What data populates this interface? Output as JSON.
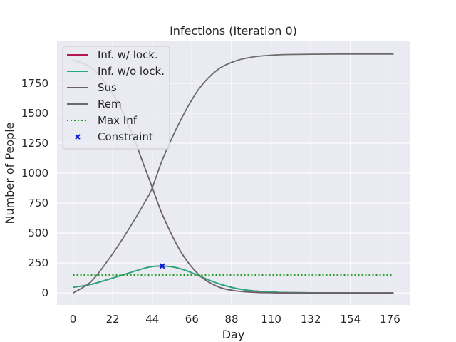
{
  "chart_data": {
    "type": "line",
    "title": "Infections (Iteration 0)",
    "xlabel": "Day",
    "ylabel": "Number of People",
    "xlim": [
      -8.9,
      186.9
    ],
    "ylim": [
      -100,
      2100
    ],
    "xticks": [
      0,
      22,
      44,
      66,
      88,
      110,
      132,
      154,
      176
    ],
    "yticks": [
      0,
      250,
      500,
      750,
      1000,
      1250,
      1500,
      1750
    ],
    "grid": true,
    "legend_position": "top-left",
    "series": [
      {
        "name": "Inf. w/ lock.",
        "style": "solid",
        "color": "#b5174e",
        "x": [
          0,
          10,
          20,
          30,
          40,
          45,
          50,
          55,
          60,
          65,
          70,
          80,
          90,
          100,
          110,
          120,
          140,
          160,
          178
        ],
        "y": [
          48,
          72,
          115,
          162,
          208,
          222,
          225,
          218,
          200,
          174,
          142,
          82,
          40,
          18,
          8,
          3,
          1,
          0,
          0
        ]
      },
      {
        "name": "Inf. w/o lock.",
        "style": "solid",
        "color": "#1fae7c",
        "x": [
          0,
          10,
          20,
          30,
          40,
          45,
          50,
          55,
          60,
          65,
          70,
          80,
          90,
          100,
          110,
          120,
          140,
          160,
          178
        ],
        "y": [
          48,
          72,
          115,
          162,
          208,
          222,
          225,
          218,
          200,
          174,
          142,
          82,
          40,
          18,
          8,
          3,
          1,
          0,
          0
        ]
      },
      {
        "name": "Sus",
        "style": "solid",
        "color": "#6e5f66",
        "x": [
          0,
          10,
          20,
          30,
          40,
          44,
          50,
          60,
          70,
          80,
          90,
          100,
          110,
          120,
          140,
          160,
          178
        ],
        "y": [
          1945,
          1880,
          1710,
          1430,
          1040,
          880,
          640,
          340,
          150,
          55,
          18,
          6,
          2,
          0,
          0,
          0,
          0
        ]
      },
      {
        "name": "Rem",
        "style": "solid",
        "color": "#6b6b6b",
        "x": [
          0,
          10,
          20,
          30,
          40,
          44,
          50,
          60,
          70,
          80,
          90,
          100,
          110,
          120,
          140,
          160,
          178
        ],
        "y": [
          0,
          95,
          285,
          510,
          760,
          880,
          1125,
          1450,
          1705,
          1860,
          1935,
          1970,
          1984,
          1990,
          1993,
          1994,
          1994
        ]
      },
      {
        "name": "Max Inf",
        "style": "dotted",
        "color": "#1a9e1a",
        "x": [
          0,
          178
        ],
        "y": [
          150,
          150
        ]
      }
    ],
    "points": [
      {
        "name": "Constraint",
        "marker": "x",
        "color": "#0d1fd6",
        "x": 49.5,
        "y": 225
      }
    ]
  }
}
